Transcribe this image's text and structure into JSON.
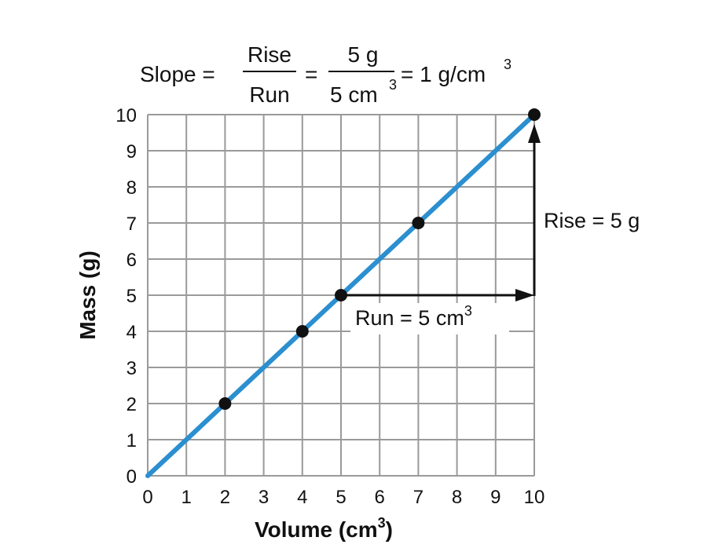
{
  "chart_data": {
    "type": "line",
    "xlabel": "Volume (cm",
    "xlabel_sup": "3",
    "xlabel_end": ")",
    "ylabel": "Mass (g)",
    "xlim": [
      0,
      10
    ],
    "ylim": [
      0,
      10
    ],
    "xticks": [
      0,
      1,
      2,
      3,
      4,
      5,
      6,
      7,
      8,
      9,
      10
    ],
    "yticks": [
      0,
      1,
      2,
      3,
      4,
      5,
      6,
      7,
      8,
      9,
      10
    ],
    "grid": true,
    "line": {
      "x": [
        0,
        10
      ],
      "y": [
        0,
        10
      ],
      "color": "#2b8fd0"
    },
    "points": [
      {
        "x": 2,
        "y": 2
      },
      {
        "x": 4,
        "y": 4
      },
      {
        "x": 5,
        "y": 5
      },
      {
        "x": 7,
        "y": 7
      },
      {
        "x": 10,
        "y": 10
      }
    ],
    "run_arrow": {
      "from": [
        5,
        5
      ],
      "to": [
        10,
        5
      ]
    },
    "rise_arrow": {
      "from": [
        10,
        5
      ],
      "to": [
        10,
        10
      ]
    },
    "annotations": {
      "rise_label": "Rise = 5 g",
      "run_label": "Run = 5 cm",
      "run_label_sup": "3"
    },
    "equation": {
      "lhs": "Slope =",
      "frac1_num": "Rise",
      "frac1_den": "Run",
      "eq2": "=",
      "frac2_num": "5 g",
      "frac2_den": "5 cm",
      "frac2_den_sup": "3",
      "result": "= 1 g/cm",
      "result_sup": "3"
    }
  }
}
